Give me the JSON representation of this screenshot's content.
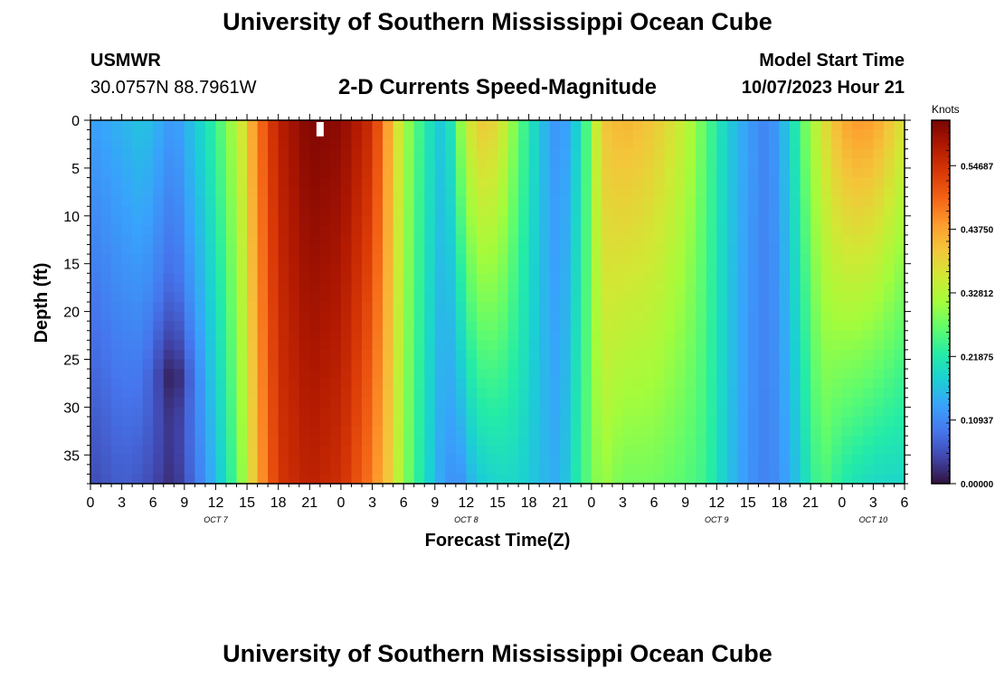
{
  "header": {
    "title": "University of Southern Mississippi Ocean Cube",
    "station_id": "USMWR",
    "station_coords": "30.0757N  88.7961W",
    "subtitle": "2-D Currents Speed-Magnitude",
    "model_start_label": "Model Start Time",
    "model_start_value": "10/07/2023 Hour 21"
  },
  "footer": {
    "title": "University of Southern Mississippi Ocean Cube"
  },
  "chart_data": {
    "type": "heatmap",
    "title": "2-D Currents Speed-Magnitude",
    "xlabel": "Forecast Time(Z)",
    "ylabel": "Depth (ft)",
    "colorbar_label": "Knots",
    "x_ticks": [
      "0",
      "3",
      "6",
      "9",
      "12",
      "15",
      "18",
      "21",
      "0",
      "3",
      "6",
      "9",
      "12",
      "15",
      "18",
      "21",
      "0",
      "3",
      "6",
      "9",
      "12",
      "15",
      "18",
      "21",
      "0",
      "3",
      "6"
    ],
    "day_labels": [
      {
        "label": "OCT 7",
        "hour": 12
      },
      {
        "label": "OCT 8",
        "hour": 36
      },
      {
        "label": "OCT 9",
        "hour": 60
      },
      {
        "label": "OCT 10",
        "hour": 75
      }
    ],
    "x_range_hours": [
      0,
      78
    ],
    "y_ticks": [
      0,
      5,
      10,
      15,
      20,
      25,
      30,
      35
    ],
    "y_range_ft": [
      0,
      38
    ],
    "y_inverted": true,
    "colorbar_ticks": [
      "0.00000",
      "0.10937",
      "0.21875",
      "0.32812",
      "0.43750",
      "0.54687"
    ],
    "value_range_knots": [
      0,
      0.625
    ],
    "colormap": [
      "#30123b",
      "#4145ab",
      "#4675ed",
      "#39a2fc",
      "#1bcfd4",
      "#24eca6",
      "#61fc6c",
      "#a4fc3b",
      "#d1e834",
      "#f3c63a",
      "#fe9b2d",
      "#f36315",
      "#d93806",
      "#b11901",
      "#7a0403"
    ],
    "columns": [
      {
        "hour": 0,
        "top": 0.13,
        "bottom": 0.05
      },
      {
        "hour": 3,
        "top": 0.15,
        "bottom": 0.07
      },
      {
        "hour": 5,
        "top": 0.17,
        "bottom": 0.06
      },
      {
        "hour": 8,
        "top": 0.12,
        "bottom": 0.02,
        "min_depth": 27,
        "min_value": 0.0
      },
      {
        "hour": 11,
        "top": 0.2,
        "bottom": 0.12
      },
      {
        "hour": 13,
        "top": 0.28,
        "bottom": 0.2
      },
      {
        "hour": 14.5,
        "top": 0.36,
        "bottom": 0.3
      },
      {
        "hour": 16,
        "top": 0.47,
        "bottom": 0.43
      },
      {
        "hour": 18,
        "top": 0.57,
        "bottom": 0.54
      },
      {
        "hour": 21,
        "top": 0.62,
        "bottom": 0.57
      },
      {
        "hour": 24,
        "top": 0.61,
        "bottom": 0.55
      },
      {
        "hour": 27,
        "top": 0.55,
        "bottom": 0.47
      },
      {
        "hour": 28.5,
        "top": 0.44,
        "bottom": 0.4
      },
      {
        "hour": 30,
        "top": 0.32,
        "bottom": 0.3
      },
      {
        "hour": 32,
        "top": 0.22,
        "bottom": 0.2
      },
      {
        "hour": 34,
        "top": 0.16,
        "bottom": 0.12
      },
      {
        "hour": 35.5,
        "top": 0.3,
        "bottom": 0.12
      },
      {
        "hour": 37,
        "top": 0.4,
        "bottom": 0.17
      },
      {
        "hour": 39,
        "top": 0.38,
        "bottom": 0.19
      },
      {
        "hour": 41,
        "top": 0.27,
        "bottom": 0.19
      },
      {
        "hour": 43,
        "top": 0.17,
        "bottom": 0.16
      },
      {
        "hour": 45,
        "top": 0.11,
        "bottom": 0.14
      },
      {
        "hour": 47,
        "top": 0.2,
        "bottom": 0.24
      },
      {
        "hour": 49,
        "top": 0.4,
        "bottom": 0.31
      },
      {
        "hour": 51,
        "top": 0.42,
        "bottom": 0.28
      },
      {
        "hour": 54,
        "top": 0.4,
        "bottom": 0.28
      },
      {
        "hour": 57,
        "top": 0.34,
        "bottom": 0.26
      },
      {
        "hour": 59,
        "top": 0.26,
        "bottom": 0.24
      },
      {
        "hour": 61,
        "top": 0.18,
        "bottom": 0.17
      },
      {
        "hour": 63,
        "top": 0.13,
        "bottom": 0.12
      },
      {
        "hour": 65,
        "top": 0.1,
        "bottom": 0.1
      },
      {
        "hour": 67,
        "top": 0.18,
        "bottom": 0.14
      },
      {
        "hour": 68.5,
        "top": 0.28,
        "bottom": 0.2
      },
      {
        "hour": 70,
        "top": 0.36,
        "bottom": 0.26
      },
      {
        "hour": 72,
        "top": 0.43,
        "bottom": 0.22
      },
      {
        "hour": 74,
        "top": 0.45,
        "bottom": 0.2
      },
      {
        "hour": 76,
        "top": 0.42,
        "bottom": 0.19
      },
      {
        "hour": 78,
        "top": 0.36,
        "bottom": 0.19
      }
    ],
    "missing_cell": {
      "hour": 22,
      "depth_ft": [
        0,
        1.5
      ]
    }
  }
}
